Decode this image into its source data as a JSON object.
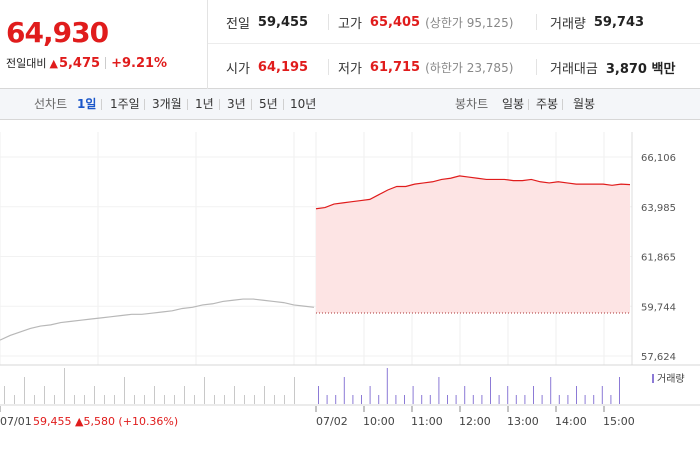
{
  "quote": {
    "price": "64,930",
    "change_label": "전일대비",
    "change_arrow": "▲",
    "change_value": "5,475",
    "change_pct": "+9.21%"
  },
  "stats": {
    "prev_close": {
      "label": "전일",
      "value": "59,455"
    },
    "high": {
      "label": "고가",
      "value": "65,405",
      "sub": "(상한가 95,125)"
    },
    "volume": {
      "label": "거래량",
      "value": "59,743"
    },
    "open": {
      "label": "시가",
      "value": "64,195"
    },
    "low": {
      "label": "저가",
      "value": "61,715",
      "sub": "(하한가 23,785)"
    },
    "amount": {
      "label": "거래대금",
      "value": "3,870 백만"
    }
  },
  "tabs": {
    "line_label": "선차트",
    "line_periods": [
      "1일",
      "1주일",
      "3개월",
      "1년",
      "3년",
      "5년",
      "10년"
    ],
    "active_period": "1일",
    "candle_label": "봉차트",
    "candle_periods": [
      "일봉",
      "주봉",
      "월봉"
    ]
  },
  "colors": {
    "up": "#e01c1c",
    "area_fill": "#fde4e4",
    "prev_line": "#b8b8b8",
    "volume_prev": "#c8c8c8",
    "volume_today": "#8c7ad6",
    "active_tab": "#1a56c9"
  },
  "chart_data": {
    "type": "line",
    "y_ticks": [
      "66,106",
      "63,985",
      "61,865",
      "59,744",
      "57,624"
    ],
    "ylim": [
      57624,
      66106
    ],
    "prev_day": {
      "date": "07/01",
      "close_label": "59,455",
      "change": "5,580",
      "change_pct": "(+10.36%)",
      "arrow": "▲",
      "values": [
        58300,
        58500,
        58650,
        58800,
        58900,
        58950,
        59050,
        59100,
        59150,
        59200,
        59250,
        59300,
        59350,
        59400,
        59400,
        59450,
        59500,
        59550,
        59650,
        59700,
        59800,
        59850,
        59950,
        60000,
        60050,
        60050,
        60000,
        59950,
        59900,
        59800,
        59750,
        59700
      ]
    },
    "today": {
      "date": "07/02",
      "time_ticks": [
        "10:00",
        "11:00",
        "12:00",
        "13:00",
        "14:00",
        "15:00"
      ],
      "values": [
        63900,
        63950,
        64100,
        64150,
        64200,
        64250,
        64300,
        64500,
        64700,
        64850,
        64850,
        64950,
        65000,
        65050,
        65150,
        65200,
        65300,
        65250,
        65200,
        65150,
        65150,
        65150,
        65100,
        65100,
        65150,
        65050,
        65000,
        65050,
        65000,
        64950,
        64950,
        64950,
        64950,
        64900,
        64950,
        64930
      ]
    },
    "volume_legend": "거래량",
    "volume_prev": [
      2,
      1,
      3,
      1,
      2,
      1,
      4,
      1,
      1,
      2,
      1,
      1,
      3,
      1,
      1,
      2,
      1,
      1,
      2,
      1,
      3,
      1,
      1,
      2,
      1,
      1,
      2,
      1,
      1,
      3
    ],
    "volume_today": [
      2,
      1,
      1,
      3,
      1,
      1,
      2,
      1,
      4,
      1,
      1,
      2,
      1,
      1,
      3,
      1,
      1,
      2,
      1,
      1,
      3,
      1,
      2,
      1,
      1,
      2,
      1,
      3,
      1,
      1,
      2,
      1,
      1,
      2,
      1,
      3
    ]
  }
}
